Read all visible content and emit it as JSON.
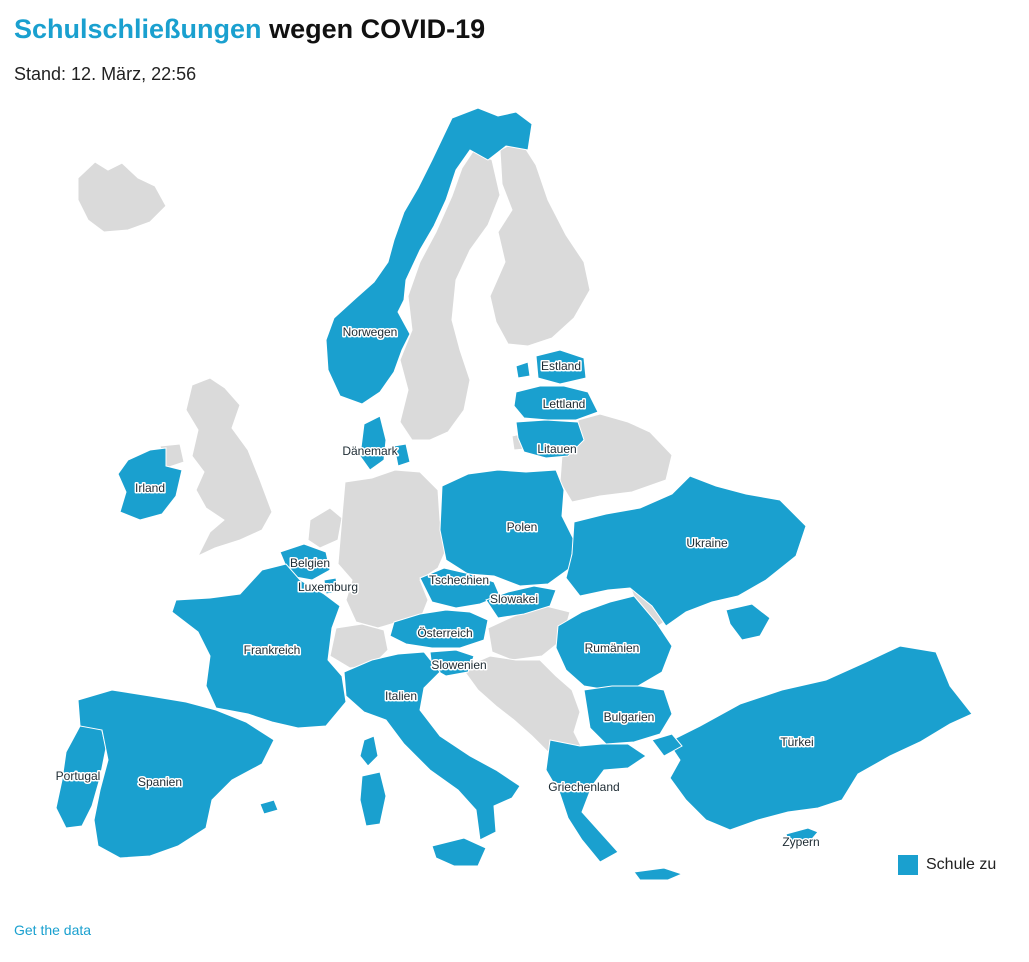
{
  "header": {
    "title_highlight": "Schulschließungen",
    "title_rest": "wegen COVID-19",
    "subtitle": "Stand: 12. März, 22:56"
  },
  "colors": {
    "closed": "#1aa0cf",
    "open": "#dadada",
    "accent": "#1aa0cf"
  },
  "map": {
    "labels": {
      "norwegen": "Norwegen",
      "estland": "Estland",
      "lettland": "Lettland",
      "litauen": "Litauen",
      "daenemark": "Dänemark",
      "irland": "Irland",
      "polen": "Polen",
      "ukraine": "Ukraine",
      "belgien": "Belgien",
      "luxemburg": "Luxemburg",
      "tschechien": "Tschechien",
      "slowakei": "Slowakei",
      "oesterreich": "Österreich",
      "slowenien": "Slowenien",
      "frankreich": "Frankreich",
      "rumaenien": "Rumänien",
      "italien": "Italien",
      "bulgarien": "Bulgarien",
      "tuerkei": "Türkei",
      "portugal": "Portugal",
      "spanien": "Spanien",
      "griechenland": "Griechenland",
      "zypern": "Zypern"
    }
  },
  "legend": {
    "label": "Schule zu"
  },
  "footer": {
    "link": "Get the data"
  }
}
